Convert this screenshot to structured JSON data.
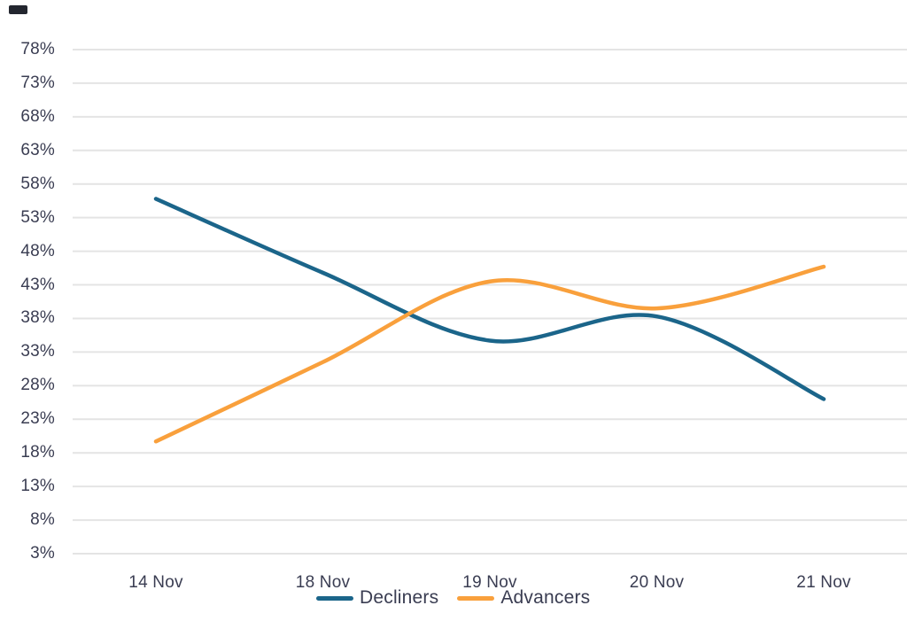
{
  "chart_data": {
    "type": "line",
    "curve": "smooth",
    "title": "",
    "xlabel": "",
    "ylabel": "",
    "x": [
      "14 Nov",
      "18 Nov",
      "19 Nov",
      "20 Nov",
      "21 Nov"
    ],
    "series": [
      {
        "name": "Decliners",
        "color": "#1B658A",
        "values": [
          55.8,
          44.8,
          34.7,
          38.3,
          26.0
        ]
      },
      {
        "name": "Advancers",
        "color": "#F9A03C",
        "values": [
          19.7,
          31.5,
          43.5,
          39.5,
          45.7
        ]
      }
    ],
    "y_axis": {
      "min": 3,
      "max": 78,
      "step": 5,
      "suffix": "%"
    },
    "y_ticks": [
      "78%",
      "73%",
      "68%",
      "63%",
      "58%",
      "53%",
      "48%",
      "43%",
      "38%",
      "33%",
      "28%",
      "23%",
      "18%",
      "13%",
      "8%",
      "3%"
    ],
    "grid": true,
    "legend": {
      "position": "bottom-center",
      "items": [
        "Decliners",
        "Advancers"
      ]
    }
  },
  "colors": {
    "text": "#3A3D52",
    "gridline": "#E4E4E4",
    "background": "#FFFFFF",
    "corner_mark": "#23262F"
  }
}
